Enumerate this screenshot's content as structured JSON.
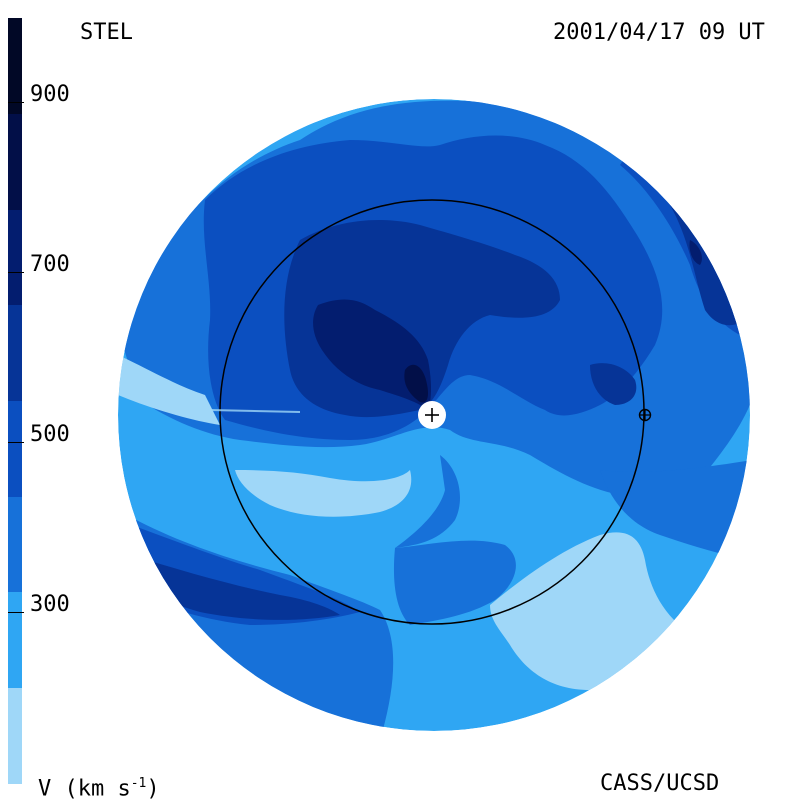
{
  "header": {
    "observatory": "STEL",
    "datetime": "2001/04/17 09 UT"
  },
  "footer": {
    "quantity_label": "V (km s",
    "quantity_exp": "-1",
    "quantity_close": ")",
    "credit": "CASS/UCSD"
  },
  "colorbar": {
    "tick_labels": [
      "900",
      "700",
      "500",
      "300"
    ],
    "levels": [
      {
        "min": 200,
        "max": 300,
        "color": "#9fd7f8"
      },
      {
        "min": 300,
        "max": 400,
        "color": "#2fa6f3"
      },
      {
        "min": 400,
        "max": 500,
        "color": "#1771d9"
      },
      {
        "min": 500,
        "max": 600,
        "color": "#0b4fc0"
      },
      {
        "min": 600,
        "max": 700,
        "color": "#063497"
      },
      {
        "min": 700,
        "max": 800,
        "color": "#031d6f"
      },
      {
        "min": 800,
        "max": 900,
        "color": "#020f48"
      },
      {
        "min": 900,
        "max": 1000,
        "color": "#010826"
      }
    ]
  },
  "map": {
    "background_color": "#2fa6f3",
    "sun_symbol": "+",
    "earth_symbol": "⊕",
    "orbit_ring": "1 AU circle"
  }
}
